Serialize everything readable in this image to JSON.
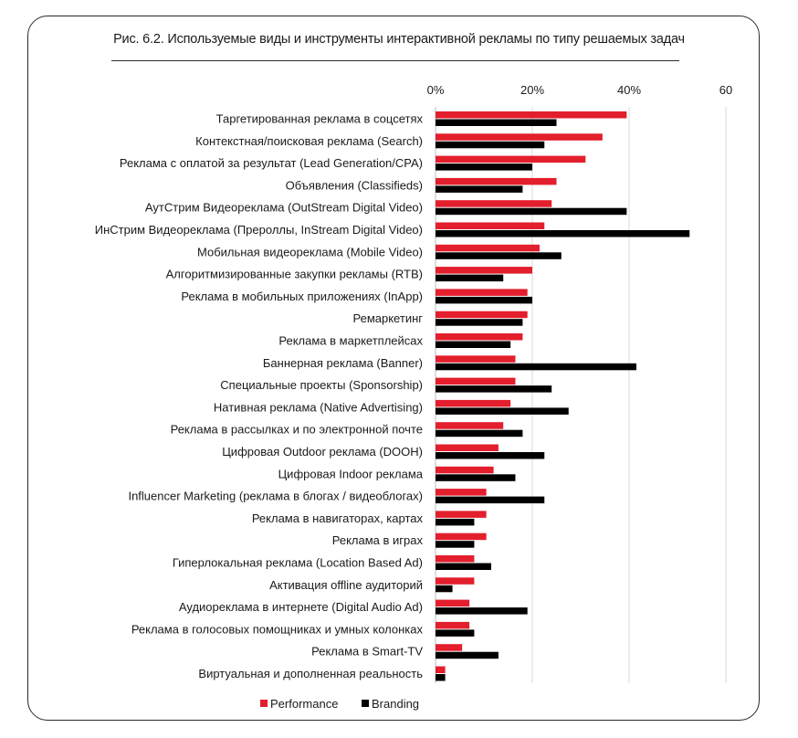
{
  "title": "Рис. 6.2.  Используемые виды и инструменты интерактивной рекламы по типу решаемых задач",
  "chart_data": {
    "type": "bar",
    "orientation": "horizontal",
    "title": "Рис. 6.2.  Используемые виды и инструменты интерактивной рекламы по типу решаемых задач",
    "xlim": [
      0,
      60
    ],
    "xticks": [
      0,
      20,
      40,
      60
    ],
    "xtick_labels": [
      "0%",
      "20%",
      "40%",
      "60"
    ],
    "grid": true,
    "legend_position": "bottom",
    "colors": {
      "Performance": "#e31e2d",
      "Branding": "#000000"
    },
    "categories": [
      "Таргетированная реклама в соцсетях",
      "Контекстная/поисковая реклама (Search)",
      "Реклама с оплатой за результат (Lead Generation/CPA)",
      "Объявления (Classifieds)",
      "АутСтрим Видеореклама (OutStream Digital Video)",
      "ИнСтрим Видеореклама (Прероллы, InStream Digital Video)",
      "Мобильная видеореклама (Mobile Video)",
      "Алгоритмизированные закупки рекламы (RTB)",
      "Реклама в мобильных приложениях (InApp)",
      "Ремаркетинг",
      "Реклама в маркетплейсах",
      "Баннерная реклама (Banner)",
      "Специальные проекты (Sponsorship)",
      "Нативная реклама (Native Advertising)",
      "Реклама в рассылках и по электронной почте",
      "Цифровая Outdoor реклама (DOOH)",
      "Цифровая Indoor реклама",
      "Influencer Marketing (реклама в блогах / видеоблогах)",
      "Реклама в навигаторах, картах",
      "Реклама в играх",
      "Гиперлокальная реклама (Location Based Ad)",
      "Активация offline аудиторий",
      "Аудиореклама в интернете (Digital Audio Ad)",
      "Реклама в голосовых помощниках и умных колонках",
      "Реклама в Smart-TV",
      "Виртуальная и дополненная реальность"
    ],
    "series": [
      {
        "name": "Performance",
        "values": [
          39.5,
          34.5,
          31,
          25,
          24,
          22.5,
          21.5,
          20,
          19,
          19,
          18,
          16.5,
          16.5,
          15.5,
          14,
          13,
          12,
          10.5,
          10.5,
          10.5,
          8,
          8,
          7,
          7,
          5.5,
          2
        ]
      },
      {
        "name": "Branding",
        "values": [
          25,
          22.5,
          20,
          18,
          39.5,
          52.5,
          26,
          14,
          20,
          18,
          15.5,
          41.5,
          24,
          27.5,
          18,
          22.5,
          16.5,
          22.5,
          8,
          8,
          11.5,
          3.5,
          19,
          8,
          13,
          2
        ]
      }
    ]
  }
}
